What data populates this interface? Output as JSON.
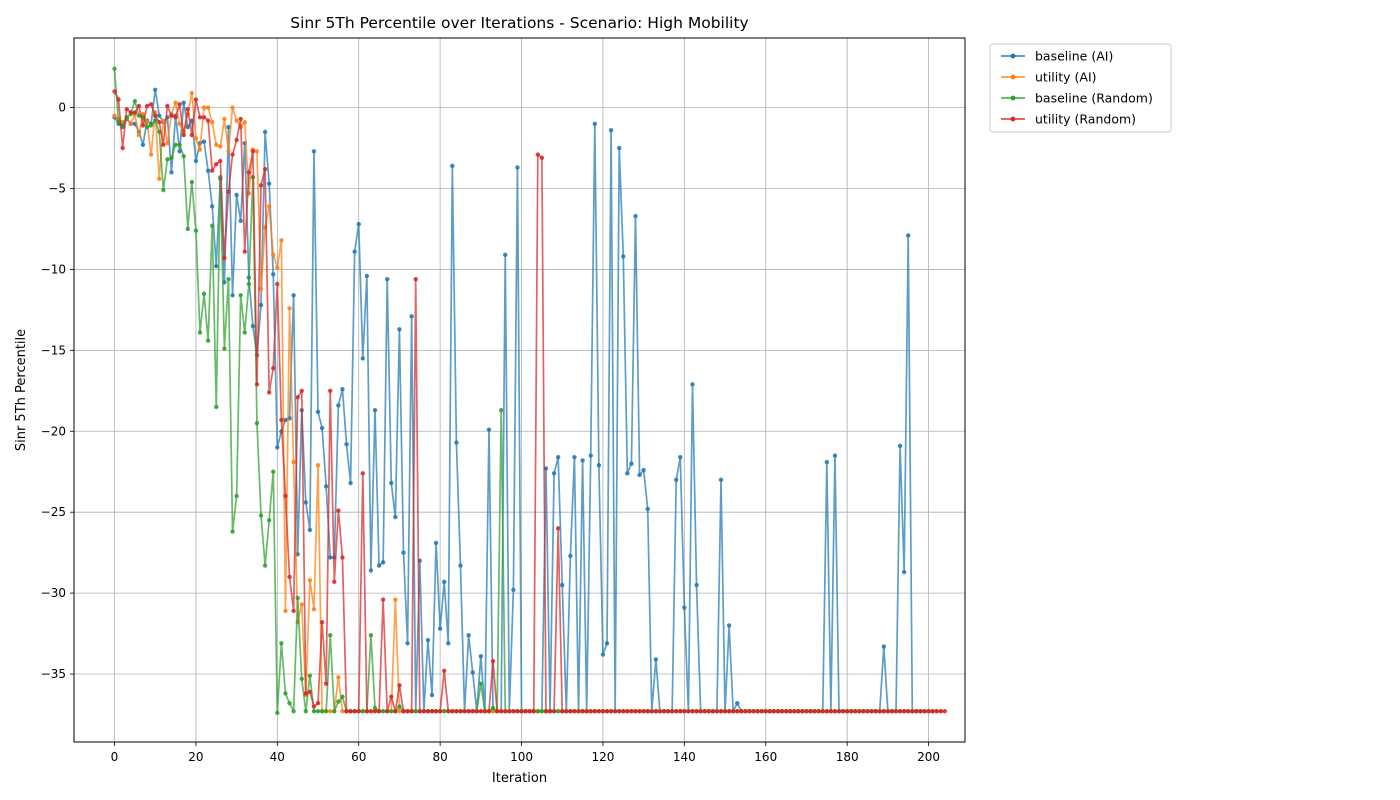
{
  "chart_data": {
    "type": "line",
    "title": "Sinr 5Th Percentile over Iterations - Scenario: High Mobility",
    "xlabel": "Iteration",
    "ylabel": "Sinr 5Th Percentile",
    "xlim": [
      -9.95,
      208.95
    ],
    "ylim": [
      -39.2,
      4.3
    ],
    "xticks": [
      0,
      20,
      40,
      60,
      80,
      100,
      120,
      140,
      160,
      180,
      200
    ],
    "yticks": [
      0,
      -5,
      -10,
      -15,
      -20,
      -25,
      -30,
      -35
    ],
    "grid": true,
    "legend_position": "outside-top-right",
    "series": [
      {
        "name": "baseline (AI)",
        "color": "#1f77b4",
        "values": [
          -0.6,
          -1.0,
          -1.2,
          -0.7,
          -1.0,
          -1.0,
          -1.5,
          -2.3,
          -0.8,
          -1.0,
          1.1,
          -0.5,
          -0.9,
          -0.6,
          -4.0,
          -0.5,
          -2.7,
          0.3,
          -1.2,
          -0.8,
          -3.3,
          -2.2,
          -2.1,
          -3.9,
          -6.1,
          -9.8,
          -4.4,
          -10.8,
          -1.2,
          -11.6,
          -5.4,
          -7.0,
          -2.2,
          -10.5,
          -13.5,
          -15.3,
          -12.2,
          -1.5,
          -4.7,
          -10.3,
          -21.0,
          -20.0,
          -19.3,
          -19.2,
          -11.6,
          -27.6,
          -18.7,
          -24.4,
          -26.1,
          -2.7,
          -18.8,
          -19.8,
          -23.4,
          -27.8,
          -27.8,
          -18.4,
          -17.4,
          -20.8,
          -23.2,
          -8.9,
          -7.2,
          -15.5,
          -10.4,
          -28.6,
          -18.7,
          -28.3,
          -28.1,
          -10.6,
          -23.2,
          -25.3,
          -13.7,
          -27.5,
          -33.1,
          -12.9,
          -37.3,
          -28.0,
          -37.3,
          -32.9,
          -36.3,
          -26.9,
          -32.2,
          -29.3,
          -33.1,
          -3.6,
          -20.7,
          -28.3,
          -37.3,
          -32.6,
          -34.9,
          -37.3,
          -33.9,
          -37.3,
          -19.9,
          -37.3,
          -37.3,
          -37.3,
          -9.1,
          -37.3,
          -29.8,
          -3.7,
          -37.3,
          -37.3,
          -37.3,
          -37.3,
          -37.3,
          -37.3,
          -22.3,
          -37.3,
          -22.6,
          -21.6,
          -29.5,
          -37.3,
          -27.7,
          -21.6,
          -37.3,
          -21.8,
          -37.3,
          -21.5,
          -1.0,
          -22.1,
          -33.8,
          -33.1,
          -1.4,
          -37.3,
          -2.5,
          -9.2,
          -22.6,
          -22.0,
          -6.7,
          -22.7,
          -22.4,
          -24.8,
          -37.3,
          -34.1,
          -37.3,
          -37.3,
          -37.3,
          -37.3,
          -23.0,
          -21.6,
          -30.9,
          -37.3,
          -17.1,
          -29.5,
          -37.3,
          -37.3,
          -37.3,
          -37.3,
          -37.3,
          -23.0,
          -37.3,
          -32.0,
          -37.3,
          -36.8,
          -37.3,
          -37.3,
          -37.3,
          -37.3,
          -37.3,
          -37.3,
          -37.3,
          -37.3,
          -37.3,
          -37.3,
          -37.3,
          -37.3,
          -37.3,
          -37.3,
          -37.3,
          -37.3,
          -37.3,
          -37.3,
          -37.3,
          -37.3,
          -37.3,
          -21.9,
          -37.3,
          -21.5,
          -37.3,
          -37.3,
          -37.3,
          -37.3,
          -37.3,
          -37.3,
          -37.3,
          -37.3,
          -37.3,
          -37.3,
          -37.3,
          -33.3,
          -37.3,
          -37.3,
          -37.3,
          -20.9,
          -28.7,
          -7.9,
          -37.3,
          -37.3,
          -37.3,
          -37.3
        ]
      },
      {
        "name": "utility (AI)",
        "color": "#ff7f0e",
        "values": [
          -0.5,
          -0.7,
          -0.9,
          -0.6,
          -1.0,
          -0.4,
          -1.7,
          -0.4,
          -0.9,
          -2.9,
          -0.3,
          -4.4,
          -0.8,
          -2.2,
          -0.4,
          0.3,
          -1.0,
          -1.5,
          -0.4,
          0.9,
          -1.9,
          -2.6,
          0.0,
          0.0,
          -0.9,
          -2.3,
          -2.4,
          -0.7,
          -2.7,
          0.0,
          -0.8,
          -1.2,
          -0.9,
          -5.3,
          -2.6,
          -2.7,
          -11.2,
          -7.4,
          -6.1,
          -9.1,
          -9.9,
          -8.2,
          -31.1,
          -12.4,
          -21.9,
          -31.8,
          -30.7,
          -36.3,
          -29.2,
          -31.0,
          -22.1,
          -37.3,
          -37.3,
          -37.3,
          -37.3,
          -35.2,
          -37.3,
          -37.3,
          -37.3,
          -37.3,
          -37.3,
          -37.3,
          -37.3,
          -37.3,
          -37.3,
          -37.3,
          -37.3,
          -37.3,
          -37.3,
          -30.4,
          -37.3,
          -37.3,
          -37.3,
          -37.3,
          -37.3,
          -37.3,
          -37.3,
          -37.3,
          -37.3,
          -37.3,
          -37.3,
          -37.3,
          -37.3,
          -37.3,
          -37.3,
          -37.3,
          -37.3,
          -37.3,
          -37.3,
          -37.3,
          -37.3,
          -37.3,
          -37.3,
          -37.3,
          -37.3,
          -37.3,
          -37.3,
          -37.3,
          -37.3,
          -37.3,
          -37.3,
          -37.3,
          -37.3,
          -37.3,
          -37.3,
          -37.3,
          -37.3,
          -37.3,
          -37.3,
          -37.3,
          -37.3,
          -37.3,
          -37.3,
          -37.3,
          -37.3,
          -37.3,
          -37.3,
          -37.3,
          -37.3,
          -37.3,
          -37.3,
          -37.3,
          -37.3,
          -37.3,
          -37.3,
          -37.3,
          -37.3,
          -37.3,
          -37.3,
          -37.3,
          -37.3,
          -37.3,
          -37.3,
          -37.3,
          -37.3,
          -37.3,
          -37.3,
          -37.3,
          -37.3,
          -37.3,
          -37.3,
          -37.3,
          -37.3,
          -37.3,
          -37.3,
          -37.3,
          -37.3,
          -37.3,
          -37.3,
          -37.3,
          -37.3,
          -37.3,
          -37.3,
          -37.3,
          -37.3,
          -37.3,
          -37.3,
          -37.3,
          -37.3,
          -37.3,
          -37.3,
          -37.3,
          -37.3,
          -37.3,
          -37.3,
          -37.3,
          -37.3,
          -37.3,
          -37.3,
          -37.3,
          -37.3,
          -37.3,
          -37.3,
          -37.3,
          -37.3,
          -37.3,
          -37.3,
          -37.3,
          -37.3,
          -37.3,
          -37.3,
          -37.3,
          -37.3,
          -37.3,
          -37.3,
          -37.3,
          -37.3,
          -37.3,
          -37.3,
          -37.3,
          -37.3,
          -37.3,
          -37.3,
          -37.3,
          -37.3,
          -37.3,
          -37.3,
          -37.3,
          -37.3,
          -37.3,
          -37.3,
          -37.3,
          -37.3,
          -37.3
        ]
      },
      {
        "name": "baseline (Random)",
        "color": "#2ca02c",
        "values": [
          2.4,
          -0.9,
          -1.1,
          -0.6,
          -0.4,
          0.4,
          -0.5,
          -0.6,
          -1.2,
          -1.1,
          -0.8,
          -1.5,
          -5.1,
          -3.2,
          -3.1,
          -2.3,
          -2.3,
          -3.0,
          -7.5,
          -4.6,
          -7.6,
          -13.9,
          -11.5,
          -14.4,
          -7.3,
          -18.5,
          -4.3,
          -14.9,
          -10.6,
          -26.2,
          -24.0,
          -11.6,
          -13.9,
          -10.9,
          -4.3,
          -19.5,
          -25.2,
          -28.3,
          -25.5,
          -22.5,
          -37.4,
          -33.1,
          -36.2,
          -36.8,
          -37.3,
          -30.3,
          -35.3,
          -37.3,
          -35.1,
          -37.3,
          -37.3,
          -37.3,
          -37.3,
          -32.6,
          -37.3,
          -36.7,
          -36.4,
          -37.3,
          -37.3,
          -37.3,
          -37.3,
          -37.3,
          -37.3,
          -32.6,
          -37.1,
          -37.3,
          -37.3,
          -37.3,
          -37.3,
          -37.3,
          -37.0,
          -37.3,
          -37.3,
          -37.3,
          -37.3,
          -37.3,
          -37.3,
          -37.3,
          -37.3,
          -37.3,
          -37.3,
          -37.3,
          -37.3,
          -37.3,
          -37.3,
          -37.3,
          -37.3,
          -37.3,
          -37.3,
          -37.3,
          -35.6,
          -37.3,
          -37.3,
          -37.1,
          -37.3,
          -18.7,
          -37.3,
          -37.3,
          -37.3,
          -37.3,
          -37.3,
          -37.3,
          -37.3,
          -37.3,
          -37.3,
          -37.3,
          -37.3,
          -37.3,
          -37.3,
          -37.3,
          -37.3,
          -37.3,
          -37.3,
          -37.3,
          -37.3,
          -37.3,
          -37.3,
          -37.3,
          -37.3,
          -37.3,
          -37.3,
          -37.3,
          -37.3,
          -37.3,
          -37.3,
          -37.3,
          -37.3,
          -37.3,
          -37.3,
          -37.3,
          -37.3,
          -37.3,
          -37.3,
          -37.3,
          -37.3,
          -37.3,
          -37.3,
          -37.3,
          -37.3,
          -37.3,
          -37.3,
          -37.3,
          -37.3,
          -37.3,
          -37.3,
          -37.3,
          -37.3,
          -37.3,
          -37.3,
          -37.3,
          -37.3,
          -37.3,
          -37.3,
          -37.3,
          -37.3,
          -37.3,
          -37.3,
          -37.3,
          -37.3,
          -37.3,
          -37.3,
          -37.3,
          -37.3,
          -37.3,
          -37.3,
          -37.3,
          -37.3,
          -37.3,
          -37.3,
          -37.3,
          -37.3,
          -37.3,
          -37.3,
          -37.3,
          -37.3,
          -37.3,
          -37.3,
          -37.3,
          -37.3,
          -37.3,
          -37.3,
          -37.3,
          -37.3,
          -37.3,
          -37.3,
          -37.3,
          -37.3,
          -37.3,
          -37.3,
          -37.3,
          -37.3,
          -37.3,
          -37.3,
          -37.3,
          -37.3,
          -37.3,
          -37.3,
          -37.3,
          -37.3,
          -37.3,
          -37.3,
          -37.3
        ]
      },
      {
        "name": "utility (Random)",
        "color": "#d62728",
        "values": [
          1.0,
          0.5,
          -2.5,
          -0.1,
          -0.3,
          -0.3,
          0.1,
          -1.1,
          0.1,
          0.2,
          -0.5,
          -0.9,
          -2.3,
          0.1,
          -0.5,
          -0.6,
          0.2,
          -1.7,
          -0.1,
          -1.7,
          0.5,
          -0.6,
          -0.6,
          -0.8,
          -3.9,
          -3.5,
          -3.3,
          -9.3,
          -5.2,
          -2.9,
          -2.0,
          -0.7,
          -8.9,
          -4.0,
          -2.7,
          -17.1,
          -4.8,
          -3.8,
          -17.6,
          -16.1,
          -10.9,
          -19.3,
          -24.0,
          -29.0,
          -31.1,
          -17.9,
          -17.5,
          -36.2,
          -36.1,
          -37.0,
          -36.8,
          -31.8,
          -35.6,
          -17.5,
          -29.3,
          -24.9,
          -27.8,
          -37.3,
          -37.3,
          -37.3,
          -37.3,
          -22.6,
          -37.3,
          -37.3,
          -37.3,
          -37.3,
          -30.4,
          -37.3,
          -36.4,
          -37.3,
          -35.7,
          -37.3,
          -37.3,
          -37.3,
          -10.6,
          -37.3,
          -37.3,
          -37.3,
          -37.3,
          -37.3,
          -37.3,
          -34.8,
          -37.3,
          -37.3,
          -37.3,
          -37.3,
          -37.3,
          -37.3,
          -37.3,
          -37.3,
          -37.3,
          -37.3,
          -37.3,
          -34.2,
          -37.3,
          -37.3,
          -37.3,
          -37.3,
          -37.3,
          -37.3,
          -37.3,
          -37.3,
          -37.3,
          -37.3,
          -2.9,
          -3.1,
          -37.3,
          -37.3,
          -37.3,
          -26.0,
          -37.3,
          -37.3,
          -37.3,
          -37.3,
          -37.3,
          -37.3,
          -37.3,
          -37.3,
          -37.3,
          -37.3,
          -37.3,
          -37.3,
          -37.3,
          -37.3,
          -37.3,
          -37.3,
          -37.3,
          -37.3,
          -37.3,
          -37.3,
          -37.3,
          -37.3,
          -37.3,
          -37.3,
          -37.3,
          -37.3,
          -37.3,
          -37.3,
          -37.3,
          -37.3,
          -37.3,
          -37.3,
          -37.3,
          -37.3,
          -37.3,
          -37.3,
          -37.3,
          -37.3,
          -37.3,
          -37.3,
          -37.3,
          -37.3,
          -37.3,
          -37.3,
          -37.3,
          -37.3,
          -37.3,
          -37.3,
          -37.3,
          -37.3,
          -37.3,
          -37.3,
          -37.3,
          -37.3,
          -37.3,
          -37.3,
          -37.3,
          -37.3,
          -37.3,
          -37.3,
          -37.3,
          -37.3,
          -37.3,
          -37.3,
          -37.3,
          -37.3,
          -37.3,
          -37.3,
          -37.3,
          -37.3,
          -37.3,
          -37.3,
          -37.3,
          -37.3,
          -37.3,
          -37.3,
          -37.3,
          -37.3,
          -37.3,
          -37.3,
          -37.3,
          -37.3,
          -37.3,
          -37.3,
          -37.3,
          -37.3,
          -37.3,
          -37.3,
          -37.3,
          -37.3,
          -37.3,
          -37.3,
          -37.3,
          -37.3,
          -37.3
        ]
      }
    ]
  }
}
